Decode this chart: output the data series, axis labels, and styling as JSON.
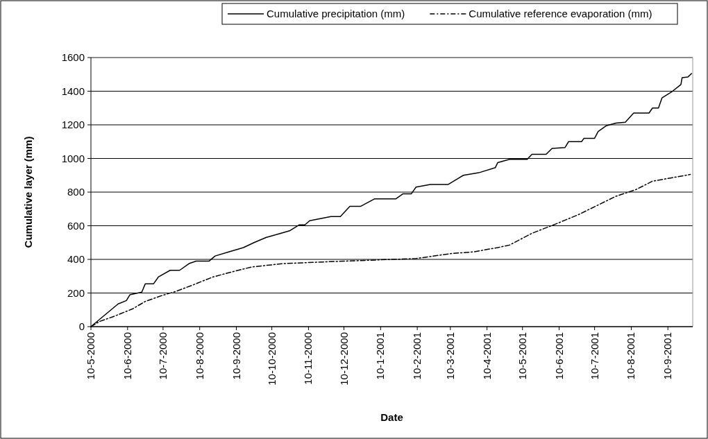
{
  "chart_data": {
    "type": "line",
    "xlabel": "Date",
    "ylabel": "Cumulative layer (mm)",
    "xlim": [
      "2000-05-10",
      "2001-10-01"
    ],
    "xticks": [
      {
        "value": "2000-05-10",
        "label": "10-5-2000"
      },
      {
        "value": "2000-06-10",
        "label": "10-6-2000"
      },
      {
        "value": "2000-07-10",
        "label": "10-7-2000"
      },
      {
        "value": "2000-08-10",
        "label": "10-8-2000"
      },
      {
        "value": "2000-09-10",
        "label": "10-9-2000"
      },
      {
        "value": "2000-10-10",
        "label": "10-10-2000"
      },
      {
        "value": "2000-11-10",
        "label": "10-11-2000"
      },
      {
        "value": "2000-12-10",
        "label": "10-12-2000"
      },
      {
        "value": "2001-01-10",
        "label": "10-1-2001"
      },
      {
        "value": "2001-02-10",
        "label": "10-2-2001"
      },
      {
        "value": "2001-03-10",
        "label": "10-3-2001"
      },
      {
        "value": "2001-04-10",
        "label": "10-4-2001"
      },
      {
        "value": "2001-05-10",
        "label": "10-5-2001"
      },
      {
        "value": "2001-06-10",
        "label": "10-6-2001"
      },
      {
        "value": "2001-07-10",
        "label": "10-7-2001"
      },
      {
        "value": "2001-08-10",
        "label": "10-8-2001"
      },
      {
        "value": "2001-09-10",
        "label": "10-9-2001"
      }
    ],
    "ylim": [
      0,
      1600
    ],
    "yticks": [
      0,
      200,
      400,
      600,
      800,
      1000,
      1200,
      1400,
      1600
    ],
    "grid": "y",
    "legend": "top",
    "series": [
      {
        "name": "Cumulative precipitation (mm)",
        "color": "#000000",
        "line_style": "solid",
        "x": [
          "2000-05-10",
          "2000-05-21",
          "2000-06-02",
          "2000-06-09",
          "2000-06-12",
          "2000-06-22",
          "2000-06-25",
          "2000-07-02",
          "2000-07-06",
          "2000-07-16",
          "2000-07-24",
          "2000-08-01",
          "2000-08-07",
          "2000-08-18",
          "2000-08-23",
          "2000-09-04",
          "2000-09-16",
          "2000-09-25",
          "2000-10-05",
          "2000-10-20",
          "2000-10-25",
          "2000-11-02",
          "2000-11-07",
          "2000-11-11",
          "2000-11-29",
          "2000-12-07",
          "2000-12-15",
          "2000-12-24",
          "2001-01-05",
          "2001-01-23",
          "2001-01-29",
          "2001-02-05",
          "2001-02-09",
          "2001-02-21",
          "2001-03-08",
          "2001-03-21",
          "2001-04-03",
          "2001-04-17",
          "2001-04-19",
          "2001-04-29",
          "2001-05-14",
          "2001-05-18",
          "2001-05-30",
          "2001-06-04",
          "2001-06-15",
          "2001-06-18",
          "2001-06-29",
          "2001-07-01",
          "2001-07-10",
          "2001-07-13",
          "2001-07-20",
          "2001-07-28",
          "2001-08-05",
          "2001-08-12",
          "2001-08-25",
          "2001-08-28",
          "2001-09-02",
          "2001-09-05",
          "2001-09-13",
          "2001-09-21",
          "2001-09-22",
          "2001-09-27",
          "2001-09-30"
        ],
        "values": [
          0,
          65,
          135,
          155,
          190,
          205,
          255,
          255,
          295,
          335,
          335,
          375,
          390,
          390,
          420,
          445,
          470,
          500,
          530,
          560,
          570,
          605,
          605,
          630,
          655,
          655,
          715,
          715,
          760,
          760,
          790,
          790,
          830,
          845,
          845,
          900,
          915,
          945,
          975,
          995,
          995,
          1025,
          1025,
          1060,
          1065,
          1100,
          1100,
          1120,
          1120,
          1160,
          1195,
          1210,
          1215,
          1270,
          1270,
          1300,
          1300,
          1360,
          1395,
          1440,
          1480,
          1485,
          1505
        ]
      },
      {
        "name": "Cumulative reference evaporation (mm)",
        "color": "#000000",
        "line_style": "dashed",
        "x": [
          "2000-05-10",
          "2000-05-17",
          "2000-05-29",
          "2000-06-14",
          "2000-06-25",
          "2000-07-09",
          "2000-07-21",
          "2000-08-05",
          "2000-08-21",
          "2000-09-06",
          "2000-09-23",
          "2000-10-20",
          "2000-11-23",
          "2001-01-01",
          "2001-02-09",
          "2001-03-11",
          "2001-03-30",
          "2001-04-19",
          "2001-04-29",
          "2001-05-18",
          "2001-06-07",
          "2001-06-26",
          "2001-07-12",
          "2001-07-28",
          "2001-08-14",
          "2001-08-28",
          "2001-09-13",
          "2001-09-29"
        ],
        "values": [
          0,
          30,
          60,
          105,
          150,
          185,
          210,
          250,
          295,
          325,
          355,
          375,
          385,
          395,
          405,
          435,
          445,
          470,
          485,
          555,
          610,
          665,
          720,
          775,
          815,
          865,
          885,
          905
        ]
      }
    ]
  }
}
